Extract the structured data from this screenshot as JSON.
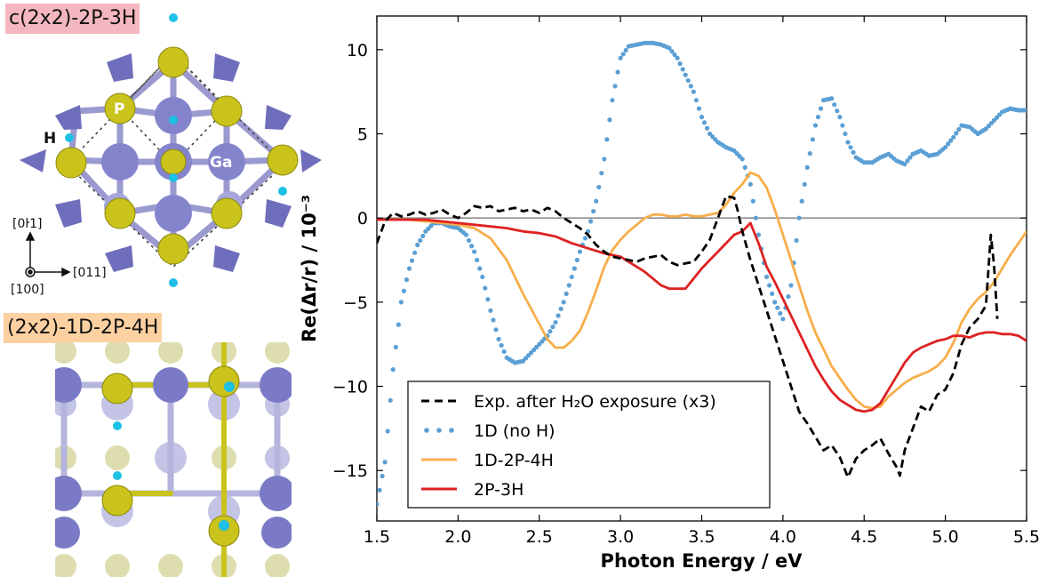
{
  "panels": {
    "top_structure_label": "c(2x2)-2P-3H",
    "top_structure_label_bg": "#f4b6bf",
    "bottom_structure_label": "(2x2)-1D-2P-4H",
    "bottom_structure_label_bg": "#fcd0a0",
    "atom_labels": {
      "p": "P",
      "ga": "Ga",
      "h": "H"
    },
    "directions": {
      "up": "[0ŀ1]",
      "right": "[011]",
      "out": "[100]"
    },
    "colors": {
      "ga": "#7f7fc8",
      "ga_light": "#b8b8e0",
      "p": "#c8c21a",
      "h": "#1ec0e6"
    }
  },
  "chart_data": {
    "type": "line",
    "xlabel": "Photon Energy / eV",
    "ylabel": "Re(Δr/r) / 10⁻³",
    "xlim": [
      1.5,
      5.5
    ],
    "ylim": [
      -18,
      12
    ],
    "xticks": [
      "1.5",
      "2.0",
      "2.5",
      "3.0",
      "3.5",
      "4.0",
      "4.5",
      "5.0",
      "5.5"
    ],
    "yticks": [
      "10",
      "5",
      "0",
      "−5",
      "−10",
      "−15"
    ],
    "ytick_values": [
      10,
      5,
      0,
      -5,
      -10,
      -15
    ],
    "zero_line": true,
    "legend_position": "lower-left",
    "series": [
      {
        "name": "Exp. after H₂O exposure (x3)",
        "color": "#000000",
        "style": "dashed",
        "x": [
          1.5,
          1.55,
          1.6,
          1.65,
          1.7,
          1.75,
          1.8,
          1.85,
          1.9,
          1.95,
          2.0,
          2.05,
          2.1,
          2.15,
          2.2,
          2.25,
          2.3,
          2.35,
          2.4,
          2.45,
          2.5,
          2.55,
          2.6,
          2.65,
          2.7,
          2.75,
          2.8,
          2.85,
          2.9,
          2.95,
          3.0,
          3.05,
          3.1,
          3.15,
          3.2,
          3.25,
          3.3,
          3.35,
          3.4,
          3.45,
          3.5,
          3.55,
          3.6,
          3.65,
          3.7,
          3.72,
          3.75,
          3.8,
          3.85,
          3.9,
          3.95,
          4.0,
          4.05,
          4.1,
          4.15,
          4.2,
          4.25,
          4.3,
          4.35,
          4.4,
          4.45,
          4.5,
          4.55,
          4.6,
          4.65,
          4.7,
          4.72,
          4.75,
          4.8,
          4.85,
          4.9,
          4.95,
          5.0,
          5.05,
          5.1,
          5.15,
          5.2,
          5.25,
          5.28,
          5.3,
          5.32
        ],
        "y": [
          -1.5,
          -0.2,
          0.3,
          0.1,
          0.2,
          0.4,
          0.2,
          0.3,
          0.5,
          0.2,
          0.0,
          0.3,
          0.7,
          0.6,
          0.7,
          0.4,
          0.5,
          0.6,
          0.4,
          0.5,
          0.3,
          0.6,
          0.4,
          0.0,
          -0.3,
          -0.6,
          -1.0,
          -1.6,
          -2.0,
          -2.3,
          -2.4,
          -2.5,
          -2.6,
          -2.4,
          -2.3,
          -2.2,
          -2.6,
          -2.8,
          -2.7,
          -2.6,
          -2.0,
          -1.3,
          0.0,
          1.3,
          1.2,
          0.5,
          -0.8,
          -2.5,
          -4.0,
          -5.5,
          -7.0,
          -8.5,
          -10.0,
          -11.5,
          -12.2,
          -13.0,
          -13.8,
          -13.5,
          -14.2,
          -15.4,
          -14.3,
          -13.8,
          -13.5,
          -13.1,
          -14.0,
          -14.8,
          -15.3,
          -13.8,
          -12.5,
          -11.2,
          -11.5,
          -10.5,
          -10.2,
          -9.2,
          -7.5,
          -6.5,
          -6.0,
          -5.2,
          -1.0,
          -2.8,
          -6.0
        ]
      },
      {
        "name": "1D (no H)",
        "color": "#5b9fd4",
        "style": "dotted",
        "x": [
          1.5,
          1.55,
          1.6,
          1.65,
          1.7,
          1.75,
          1.8,
          1.85,
          1.9,
          1.95,
          2.0,
          2.05,
          2.1,
          2.15,
          2.2,
          2.25,
          2.3,
          2.35,
          2.4,
          2.45,
          2.5,
          2.55,
          2.6,
          2.65,
          2.7,
          2.75,
          2.8,
          2.85,
          2.9,
          2.95,
          3.0,
          3.05,
          3.1,
          3.15,
          3.2,
          3.25,
          3.3,
          3.35,
          3.4,
          3.45,
          3.5,
          3.55,
          3.6,
          3.65,
          3.7,
          3.75,
          3.8,
          3.85,
          3.9,
          3.95,
          4.0,
          4.05,
          4.1,
          4.15,
          4.2,
          4.25,
          4.3,
          4.35,
          4.4,
          4.45,
          4.5,
          4.55,
          4.6,
          4.65,
          4.7,
          4.75,
          4.8,
          4.85,
          4.9,
          4.95,
          5.0,
          5.05,
          5.1,
          5.15,
          5.2,
          5.25,
          5.3,
          5.35,
          5.4,
          5.45,
          5.5
        ],
        "y": [
          -17.0,
          -14.5,
          -9.0,
          -5.0,
          -3.0,
          -1.6,
          -0.8,
          -0.3,
          -0.3,
          -0.5,
          -0.6,
          -1.0,
          -2.0,
          -3.5,
          -5.5,
          -7.2,
          -8.3,
          -8.6,
          -8.5,
          -8.0,
          -7.5,
          -7.0,
          -6.2,
          -5.0,
          -3.5,
          -2.0,
          -0.8,
          1.0,
          3.5,
          7.0,
          9.5,
          10.2,
          10.3,
          10.4,
          10.4,
          10.3,
          10.1,
          9.5,
          8.5,
          7.5,
          6.0,
          5.0,
          4.5,
          4.2,
          4.0,
          3.5,
          2.0,
          -1.0,
          -3.5,
          -5.0,
          -6.0,
          -4.0,
          0.0,
          3.0,
          5.5,
          7.0,
          7.1,
          6.0,
          4.5,
          3.6,
          3.3,
          3.3,
          3.6,
          3.8,
          3.4,
          3.2,
          3.8,
          4.0,
          3.7,
          3.8,
          4.2,
          4.8,
          5.5,
          5.4,
          5.0,
          5.3,
          5.8,
          6.3,
          6.5,
          6.4,
          6.4
        ]
      },
      {
        "name": "1D-2P-4H",
        "color": "#f7ae4a",
        "style": "solid",
        "x": [
          1.5,
          1.6,
          1.7,
          1.8,
          1.9,
          2.0,
          2.1,
          2.2,
          2.3,
          2.4,
          2.5,
          2.55,
          2.6,
          2.65,
          2.7,
          2.75,
          2.8,
          2.85,
          2.9,
          2.95,
          3.0,
          3.05,
          3.1,
          3.15,
          3.2,
          3.25,
          3.3,
          3.35,
          3.4,
          3.45,
          3.5,
          3.55,
          3.6,
          3.65,
          3.7,
          3.75,
          3.8,
          3.85,
          3.9,
          3.95,
          4.0,
          4.05,
          4.1,
          4.15,
          4.2,
          4.25,
          4.3,
          4.35,
          4.4,
          4.45,
          4.5,
          4.55,
          4.6,
          4.65,
          4.7,
          4.75,
          4.8,
          4.85,
          4.9,
          4.95,
          5.0,
          5.05,
          5.1,
          5.15,
          5.2,
          5.25,
          5.3,
          5.35,
          5.4,
          5.45,
          5.5
        ],
        "y": [
          -0.1,
          -0.1,
          -0.1,
          -0.2,
          -0.3,
          -0.4,
          -0.6,
          -1.2,
          -2.5,
          -4.5,
          -6.3,
          -7.2,
          -7.7,
          -7.7,
          -7.3,
          -6.7,
          -5.6,
          -4.3,
          -2.9,
          -1.9,
          -1.3,
          -0.8,
          -0.4,
          0.0,
          0.2,
          0.2,
          0.1,
          0.1,
          0.2,
          0.1,
          0.1,
          0.2,
          0.3,
          0.8,
          1.5,
          2.0,
          2.7,
          2.5,
          1.8,
          0.5,
          -1.0,
          -2.5,
          -4.0,
          -5.5,
          -6.8,
          -7.8,
          -8.8,
          -9.5,
          -10.2,
          -10.8,
          -11.2,
          -11.3,
          -11.2,
          -10.6,
          -10.2,
          -9.8,
          -9.5,
          -9.3,
          -9.1,
          -8.8,
          -8.3,
          -7.4,
          -6.2,
          -5.4,
          -4.8,
          -4.4,
          -3.8,
          -3.0,
          -2.2,
          -1.5,
          -0.8
        ]
      },
      {
        "name": "2P-3H",
        "color": "#dd2222",
        "style": "solid",
        "x": [
          1.5,
          1.6,
          1.7,
          1.8,
          1.9,
          2.0,
          2.1,
          2.2,
          2.3,
          2.4,
          2.5,
          2.6,
          2.7,
          2.8,
          2.9,
          3.0,
          3.05,
          3.1,
          3.15,
          3.2,
          3.25,
          3.3,
          3.35,
          3.4,
          3.45,
          3.5,
          3.55,
          3.6,
          3.65,
          3.7,
          3.75,
          3.8,
          3.85,
          3.9,
          3.95,
          4.0,
          4.05,
          4.1,
          4.15,
          4.2,
          4.25,
          4.3,
          4.35,
          4.4,
          4.45,
          4.5,
          4.55,
          4.6,
          4.65,
          4.7,
          4.75,
          4.8,
          4.85,
          4.9,
          4.95,
          5.0,
          5.05,
          5.1,
          5.15,
          5.2,
          5.25,
          5.3,
          5.35,
          5.4,
          5.45,
          5.5
        ],
        "y": [
          -0.1,
          -0.1,
          -0.1,
          -0.1,
          -0.2,
          -0.3,
          -0.4,
          -0.5,
          -0.6,
          -0.8,
          -0.9,
          -1.1,
          -1.5,
          -1.8,
          -2.1,
          -2.3,
          -2.6,
          -2.9,
          -3.2,
          -3.6,
          -4.0,
          -4.2,
          -4.2,
          -4.2,
          -3.6,
          -3.0,
          -2.5,
          -2.0,
          -1.5,
          -1.0,
          -0.8,
          -0.3,
          -1.5,
          -2.9,
          -3.8,
          -4.8,
          -5.8,
          -6.8,
          -7.8,
          -8.8,
          -9.6,
          -10.3,
          -10.8,
          -11.1,
          -11.4,
          -11.5,
          -11.4,
          -11.0,
          -10.2,
          -9.4,
          -8.6,
          -8.0,
          -7.7,
          -7.5,
          -7.3,
          -7.2,
          -7.0,
          -7.0,
          -7.1,
          -6.9,
          -6.8,
          -6.8,
          -6.9,
          -6.9,
          -7.0,
          -7.3
        ]
      }
    ]
  }
}
